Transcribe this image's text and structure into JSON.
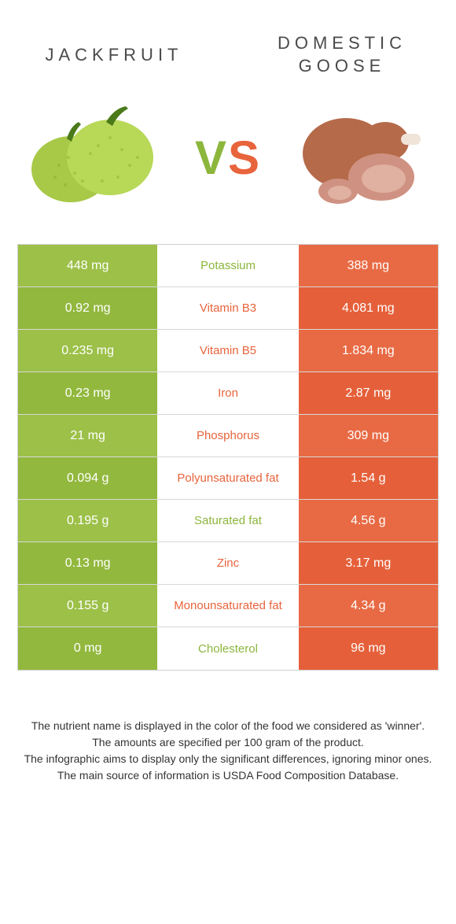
{
  "colors": {
    "green": "#8cb63c",
    "orange": "#e8643c",
    "row_green_a": "#9cc048",
    "row_green_b": "#92b83e",
    "row_orange_a": "#e86a44",
    "row_orange_b": "#e5603a",
    "text_gray": "#4a4a4a",
    "border": "#d0d0d0"
  },
  "header": {
    "left_title": "Jackfruit",
    "right_title": "Domestic Goose",
    "vs_v": "V",
    "vs_s": "S"
  },
  "table": {
    "rows": [
      {
        "left": "448 mg",
        "mid": "Potassium",
        "right": "388 mg",
        "winner": "left"
      },
      {
        "left": "0.92 mg",
        "mid": "Vitamin B3",
        "right": "4.081 mg",
        "winner": "right"
      },
      {
        "left": "0.235 mg",
        "mid": "Vitamin B5",
        "right": "1.834 mg",
        "winner": "right"
      },
      {
        "left": "0.23 mg",
        "mid": "Iron",
        "right": "2.87 mg",
        "winner": "right"
      },
      {
        "left": "21 mg",
        "mid": "Phosphorus",
        "right": "309 mg",
        "winner": "right"
      },
      {
        "left": "0.094 g",
        "mid": "Polyunsaturated fat",
        "right": "1.54 g",
        "winner": "right"
      },
      {
        "left": "0.195 g",
        "mid": "Saturated fat",
        "right": "4.56 g",
        "winner": "left"
      },
      {
        "left": "0.13 mg",
        "mid": "Zinc",
        "right": "3.17 mg",
        "winner": "right"
      },
      {
        "left": "0.155 g",
        "mid": "Monounsaturated fat",
        "right": "4.34 g",
        "winner": "right"
      },
      {
        "left": "0 mg",
        "mid": "Cholesterol",
        "right": "96 mg",
        "winner": "left"
      }
    ]
  },
  "footnotes": {
    "line1": "The nutrient name is displayed in the color of the food we considered as 'winner'.",
    "line2": "The amounts are specified per 100 gram of the product.",
    "line3": "The infographic aims to display only the significant differences, ignoring minor ones.",
    "line4": "The main source of information is USDA Food Composition Database."
  }
}
